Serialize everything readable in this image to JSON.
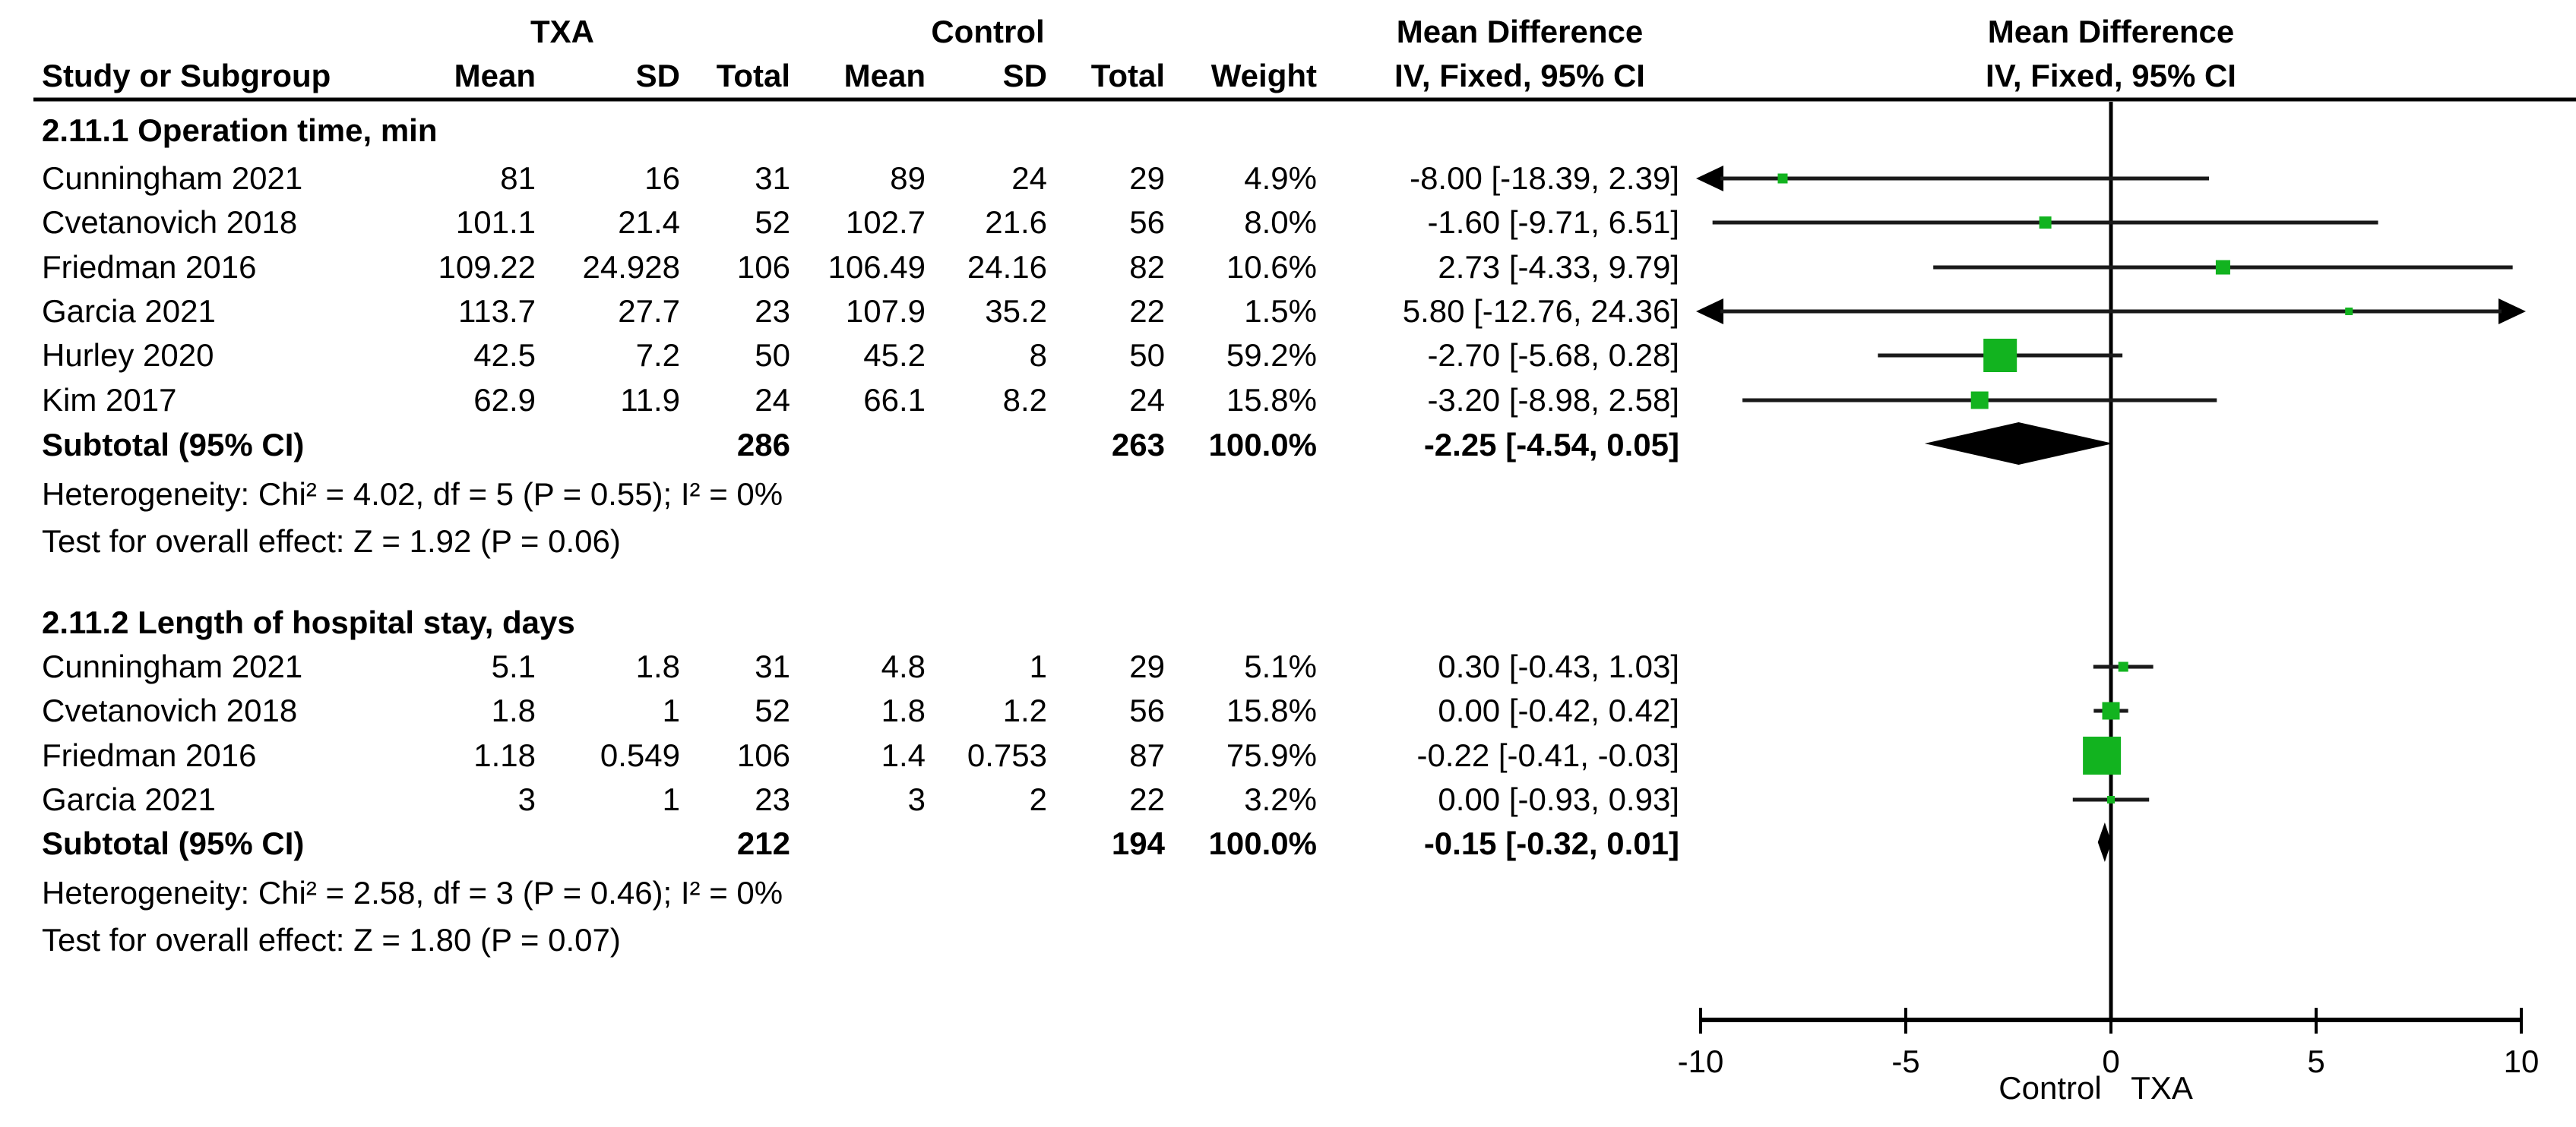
{
  "header": {
    "group_txa": "TXA",
    "group_control": "Control",
    "md_left": "Mean Difference",
    "md_right": "Mean Difference",
    "method_left": "IV, Fixed, 95% CI",
    "method_right": "IV, Fixed, 95% CI"
  },
  "columns": {
    "study": "Study or Subgroup",
    "mean": "Mean",
    "sd": "SD",
    "total": "Total",
    "mean2": "Mean",
    "sd2": "SD",
    "total2": "Total",
    "weight": "Weight"
  },
  "chart_data": {
    "type": "forest",
    "effect_measure": "Mean Difference",
    "method": "IV, Fixed, 95% CI",
    "comparison": {
      "experimental": "TXA",
      "control": "Control"
    },
    "marker_color": "#12b31f",
    "diamond_color": "#000000",
    "axis": {
      "min": -10,
      "max": 10,
      "ticks": [
        "-10",
        "-5",
        "0",
        "5",
        "10"
      ],
      "tick_values": [
        -10,
        -5,
        0,
        5,
        10
      ],
      "left_label": "Control",
      "right_label": "TXA"
    },
    "subgroups": [
      {
        "title": "2.11.1 Operation time, min",
        "studies": [
          {
            "name": "Cunningham 2021",
            "txa_mean": "81",
            "txa_sd": "16",
            "txa_total": "31",
            "c_mean": "89",
            "c_sd": "24",
            "c_total": "29",
            "weight": "4.9%",
            "ci_text": "-8.00 [-18.39, 2.39]",
            "est": -8.0,
            "lo": -18.39,
            "hi": 2.39,
            "w": 4.9
          },
          {
            "name": "Cvetanovich 2018",
            "txa_mean": "101.1",
            "txa_sd": "21.4",
            "txa_total": "52",
            "c_mean": "102.7",
            "c_sd": "21.6",
            "c_total": "56",
            "weight": "8.0%",
            "ci_text": "-1.60 [-9.71, 6.51]",
            "est": -1.6,
            "lo": -9.71,
            "hi": 6.51,
            "w": 8.0
          },
          {
            "name": "Friedman 2016",
            "txa_mean": "109.22",
            "txa_sd": "24.928",
            "txa_total": "106",
            "c_mean": "106.49",
            "c_sd": "24.16",
            "c_total": "82",
            "weight": "10.6%",
            "ci_text": "2.73 [-4.33, 9.79]",
            "est": 2.73,
            "lo": -4.33,
            "hi": 9.79,
            "w": 10.6
          },
          {
            "name": "Garcia 2021",
            "txa_mean": "113.7",
            "txa_sd": "27.7",
            "txa_total": "23",
            "c_mean": "107.9",
            "c_sd": "35.2",
            "c_total": "22",
            "weight": "1.5%",
            "ci_text": "5.80 [-12.76, 24.36]",
            "est": 5.8,
            "lo": -12.76,
            "hi": 24.36,
            "w": 1.5
          },
          {
            "name": "Hurley 2020",
            "txa_mean": "42.5",
            "txa_sd": "7.2",
            "txa_total": "50",
            "c_mean": "45.2",
            "c_sd": "8",
            "c_total": "50",
            "weight": "59.2%",
            "ci_text": "-2.70 [-5.68, 0.28]",
            "est": -2.7,
            "lo": -5.68,
            "hi": 0.28,
            "w": 59.2
          },
          {
            "name": "Kim 2017",
            "txa_mean": "62.9",
            "txa_sd": "11.9",
            "txa_total": "24",
            "c_mean": "66.1",
            "c_sd": "8.2",
            "c_total": "24",
            "weight": "15.8%",
            "ci_text": "-3.20 [-8.98, 2.58]",
            "est": -3.2,
            "lo": -8.98,
            "hi": 2.58,
            "w": 15.8
          }
        ],
        "subtotal": {
          "label": "Subtotal (95% CI)",
          "txa_total": "286",
          "c_total": "263",
          "weight": "100.0%",
          "ci_text": "-2.25 [-4.54, 0.05]",
          "est": -2.25,
          "lo": -4.54,
          "hi": 0.05
        },
        "heterogeneity": "Heterogeneity: Chi² = 4.02, df = 5 (P = 0.55); I² = 0%",
        "overall_effect": "Test for overall effect: Z = 1.92 (P = 0.06)"
      },
      {
        "title": "2.11.2 Length of hospital stay, days",
        "studies": [
          {
            "name": "Cunningham 2021",
            "txa_mean": "5.1",
            "txa_sd": "1.8",
            "txa_total": "31",
            "c_mean": "4.8",
            "c_sd": "1",
            "c_total": "29",
            "weight": "5.1%",
            "ci_text": "0.30 [-0.43, 1.03]",
            "est": 0.3,
            "lo": -0.43,
            "hi": 1.03,
            "w": 5.1
          },
          {
            "name": "Cvetanovich 2018",
            "txa_mean": "1.8",
            "txa_sd": "1",
            "txa_total": "52",
            "c_mean": "1.8",
            "c_sd": "1.2",
            "c_total": "56",
            "weight": "15.8%",
            "ci_text": "0.00 [-0.42, 0.42]",
            "est": 0.0,
            "lo": -0.42,
            "hi": 0.42,
            "w": 15.8
          },
          {
            "name": "Friedman 2016",
            "txa_mean": "1.18",
            "txa_sd": "0.549",
            "txa_total": "106",
            "c_mean": "1.4",
            "c_sd": "0.753",
            "c_total": "87",
            "weight": "75.9%",
            "ci_text": "-0.22 [-0.41, -0.03]",
            "est": -0.22,
            "lo": -0.41,
            "hi": -0.03,
            "w": 75.9
          },
          {
            "name": "Garcia 2021",
            "txa_mean": "3",
            "txa_sd": "1",
            "txa_total": "23",
            "c_mean": "3",
            "c_sd": "2",
            "c_total": "22",
            "weight": "3.2%",
            "ci_text": "0.00 [-0.93, 0.93]",
            "est": 0.0,
            "lo": -0.93,
            "hi": 0.93,
            "w": 3.2
          }
        ],
        "subtotal": {
          "label": "Subtotal (95% CI)",
          "txa_total": "212",
          "c_total": "194",
          "weight": "100.0%",
          "ci_text": "-0.15 [-0.32, 0.01]",
          "est": -0.15,
          "lo": -0.32,
          "hi": 0.01
        },
        "heterogeneity": "Heterogeneity: Chi² = 2.58, df = 3 (P = 0.46); I² = 0%",
        "overall_effect": "Test for overall effect: Z = 1.80 (P = 0.07)"
      }
    ]
  }
}
